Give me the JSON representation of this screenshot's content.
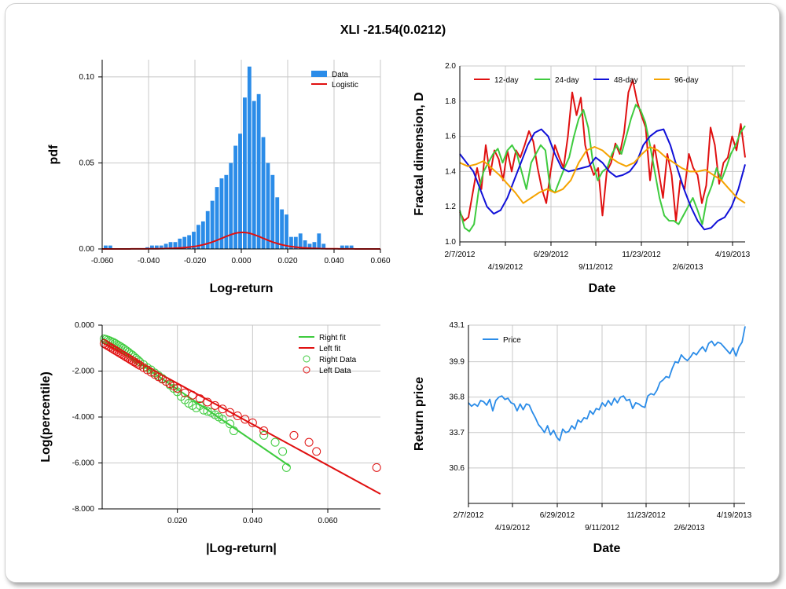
{
  "title": "XLI -21.54(0.0212)",
  "colors": {
    "blue": "#2b8ce8",
    "red": "#e01010",
    "green": "#3ecb3e",
    "darkblue": "#1010d8",
    "orange": "#f5a300",
    "grid": "#c8c8c8"
  },
  "chart_data": [
    {
      "type": "bar",
      "id": "histogram",
      "xlabel": "Log-return",
      "ylabel": "pdf",
      "xlim": [
        -0.06,
        0.06
      ],
      "ylim": [
        0,
        0.11
      ],
      "xticks": [
        "-0.060",
        "-0.040",
        "-0.020",
        "0.000",
        "0.020",
        "0.040",
        "0.060"
      ],
      "yticks": [
        "0.00",
        "0.05",
        "0.10"
      ],
      "legend": [
        "Data",
        "Logistic"
      ],
      "legend_position": "top-right",
      "bins": [
        -0.0585,
        -0.0565,
        -0.0545,
        -0.0525,
        -0.0505,
        -0.0485,
        -0.0465,
        -0.0445,
        -0.0425,
        -0.0405,
        -0.0385,
        -0.0365,
        -0.0345,
        -0.0325,
        -0.0305,
        -0.0285,
        -0.0265,
        -0.0245,
        -0.0225,
        -0.0205,
        -0.0185,
        -0.0165,
        -0.0145,
        -0.0125,
        -0.0105,
        -0.0085,
        -0.0065,
        -0.0045,
        -0.0025,
        -0.0005,
        0.0015,
        0.0035,
        0.0055,
        0.0075,
        0.0095,
        0.0115,
        0.0135,
        0.0155,
        0.0175,
        0.0195,
        0.0215,
        0.0235,
        0.0255,
        0.0275,
        0.0295,
        0.0315,
        0.0335,
        0.0355,
        0.0375,
        0.0395,
        0.0415,
        0.0435,
        0.0455,
        0.0475
      ],
      "values": [
        0.002,
        0.002,
        0,
        0,
        0,
        0,
        0,
        0,
        0,
        0.001,
        0.002,
        0.002,
        0.002,
        0.003,
        0.004,
        0.004,
        0.006,
        0.007,
        0.008,
        0.01,
        0.014,
        0.016,
        0.022,
        0.028,
        0.036,
        0.041,
        0.043,
        0.05,
        0.06,
        0.067,
        0.088,
        0.106,
        0.086,
        0.09,
        0.065,
        0.05,
        0.043,
        0.03,
        0.023,
        0.02,
        0.007,
        0.007,
        0.009,
        0.005,
        0.003,
        0.004,
        0.009,
        0.003,
        0,
        0,
        0,
        0.002,
        0.002,
        0.002
      ],
      "series": [
        {
          "name": "Logistic",
          "mu": 0.0005,
          "s": 0.0065
        }
      ]
    },
    {
      "type": "line",
      "id": "fractal",
      "xlabel": "Date",
      "ylabel": "Fractal dimension, D",
      "ylim": [
        1.0,
        2.0
      ],
      "yticks": [
        "1.0",
        "1.2",
        "1.4",
        "1.6",
        "1.8",
        "2.0"
      ],
      "xticks_top": [
        "2/7/2012",
        "6/29/2012",
        "11/23/2012",
        "4/19/2013"
      ],
      "xticks_bottom": [
        "4/19/2012",
        "9/11/2012",
        "2/6/2013"
      ],
      "legend_position": "top",
      "series": [
        {
          "name": "12-day",
          "values": [
            1.17,
            1.12,
            1.14,
            1.28,
            1.42,
            1.3,
            1.55,
            1.38,
            1.52,
            1.47,
            1.35,
            1.52,
            1.4,
            1.52,
            1.48,
            1.55,
            1.63,
            1.57,
            1.42,
            1.3,
            1.22,
            1.4,
            1.55,
            1.48,
            1.42,
            1.6,
            1.85,
            1.72,
            1.82,
            1.55,
            1.45,
            1.38,
            1.42,
            1.15,
            1.4,
            1.45,
            1.56,
            1.5,
            1.62,
            1.85,
            1.92,
            1.8,
            1.72,
            1.65,
            1.35,
            1.55,
            1.4,
            1.25,
            1.5,
            1.38,
            1.12,
            1.35,
            1.3,
            1.5,
            1.42,
            1.38,
            1.22,
            1.32,
            1.65,
            1.55,
            1.33,
            1.45,
            1.48,
            1.6,
            1.52,
            1.67,
            1.48
          ]
        },
        {
          "name": "24-day",
          "values": [
            1.18,
            1.08,
            1.06,
            1.1,
            1.3,
            1.4,
            1.45,
            1.5,
            1.53,
            1.45,
            1.52,
            1.55,
            1.5,
            1.4,
            1.3,
            1.45,
            1.5,
            1.55,
            1.52,
            1.3,
            1.28,
            1.35,
            1.42,
            1.48,
            1.6,
            1.7,
            1.75,
            1.65,
            1.45,
            1.35,
            1.4,
            1.42,
            1.5,
            1.55,
            1.5,
            1.6,
            1.7,
            1.78,
            1.75,
            1.68,
            1.55,
            1.4,
            1.25,
            1.15,
            1.12,
            1.12,
            1.1,
            1.15,
            1.2,
            1.25,
            1.18,
            1.1,
            1.25,
            1.32,
            1.42,
            1.35,
            1.42,
            1.5,
            1.55,
            1.62,
            1.66
          ]
        },
        {
          "name": "48-day",
          "values": [
            1.5,
            1.45,
            1.4,
            1.3,
            1.2,
            1.16,
            1.18,
            1.25,
            1.35,
            1.45,
            1.55,
            1.62,
            1.64,
            1.6,
            1.5,
            1.42,
            1.4,
            1.41,
            1.42,
            1.43,
            1.48,
            1.45,
            1.4,
            1.37,
            1.38,
            1.4,
            1.45,
            1.55,
            1.6,
            1.63,
            1.64,
            1.55,
            1.42,
            1.3,
            1.2,
            1.12,
            1.07,
            1.08,
            1.12,
            1.14,
            1.2,
            1.3,
            1.44
          ]
        },
        {
          "name": "96-day",
          "values": [
            1.45,
            1.43,
            1.44,
            1.46,
            1.42,
            1.38,
            1.33,
            1.28,
            1.22,
            1.25,
            1.28,
            1.3,
            1.28,
            1.3,
            1.35,
            1.45,
            1.52,
            1.54,
            1.52,
            1.48,
            1.45,
            1.43,
            1.45,
            1.5,
            1.54,
            1.52,
            1.48,
            1.45,
            1.42,
            1.4,
            1.4,
            1.41,
            1.38,
            1.35,
            1.3,
            1.25,
            1.22
          ]
        }
      ]
    },
    {
      "type": "scatter",
      "id": "tail",
      "xlabel": "|Log-return|",
      "ylabel": "Log(percentile)",
      "xlim": [
        0,
        0.074
      ],
      "ylim": [
        -8.0,
        0.0
      ],
      "xticks": [
        "0.020",
        "0.040",
        "0.060"
      ],
      "yticks": [
        "0.000",
        "-2.000",
        "-4.000",
        "-6.000",
        "-8.000"
      ],
      "legend_position": "top-right",
      "series": [
        {
          "name": "Right fit",
          "kind": "line",
          "x": [
            0.0,
            0.05
          ],
          "y": [
            -0.55,
            -6.15
          ]
        },
        {
          "name": "Left fit",
          "kind": "line",
          "x": [
            0.0,
            0.074
          ],
          "y": [
            -0.75,
            -7.35
          ]
        },
        {
          "name": "Right Data",
          "kind": "points",
          "x": [
            0.0005,
            0.001,
            0.0015,
            0.002,
            0.0025,
            0.003,
            0.0035,
            0.004,
            0.0045,
            0.005,
            0.0055,
            0.006,
            0.0065,
            0.007,
            0.0075,
            0.008,
            0.0085,
            0.009,
            0.0095,
            0.01,
            0.011,
            0.012,
            0.013,
            0.014,
            0.015,
            0.016,
            0.017,
            0.018,
            0.019,
            0.02,
            0.021,
            0.022,
            0.023,
            0.024,
            0.025,
            0.026,
            0.027,
            0.028,
            0.029,
            0.03,
            0.031,
            0.032,
            0.034,
            0.035,
            0.043,
            0.046,
            0.048,
            0.049
          ],
          "y": [
            -0.6,
            -0.62,
            -0.65,
            -0.68,
            -0.72,
            -0.75,
            -0.8,
            -0.85,
            -0.9,
            -0.95,
            -1.0,
            -1.06,
            -1.12,
            -1.18,
            -1.25,
            -1.3,
            -1.38,
            -1.45,
            -1.52,
            -1.6,
            -1.72,
            -1.85,
            -1.95,
            -2.08,
            -2.2,
            -2.32,
            -2.45,
            -2.6,
            -2.75,
            -2.9,
            -3.1,
            -3.25,
            -3.4,
            -3.5,
            -3.6,
            -3.5,
            -3.7,
            -3.75,
            -3.8,
            -3.9,
            -4.0,
            -4.1,
            -4.3,
            -4.6,
            -4.8,
            -5.1,
            -5.5,
            -6.2
          ]
        },
        {
          "name": "Left Data",
          "kind": "points",
          "x": [
            0.0005,
            0.001,
            0.0015,
            0.002,
            0.0025,
            0.003,
            0.0035,
            0.004,
            0.0045,
            0.005,
            0.0055,
            0.006,
            0.0065,
            0.007,
            0.0075,
            0.008,
            0.0085,
            0.009,
            0.0095,
            0.01,
            0.011,
            0.012,
            0.013,
            0.014,
            0.015,
            0.016,
            0.017,
            0.018,
            0.019,
            0.02,
            0.022,
            0.024,
            0.026,
            0.028,
            0.03,
            0.032,
            0.034,
            0.036,
            0.038,
            0.04,
            0.043,
            0.051,
            0.055,
            0.057,
            0.073
          ],
          "y": [
            -0.8,
            -0.85,
            -0.9,
            -0.95,
            -1.0,
            -1.05,
            -1.1,
            -1.15,
            -1.2,
            -1.25,
            -1.3,
            -1.35,
            -1.4,
            -1.45,
            -1.5,
            -1.55,
            -1.6,
            -1.65,
            -1.7,
            -1.75,
            -1.85,
            -1.95,
            -2.05,
            -2.15,
            -2.25,
            -2.35,
            -2.45,
            -2.55,
            -2.65,
            -2.75,
            -2.95,
            -3.05,
            -3.2,
            -3.35,
            -3.5,
            -3.65,
            -3.8,
            -3.95,
            -4.1,
            -4.25,
            -4.6,
            -4.8,
            -5.1,
            -5.5,
            -6.2
          ]
        }
      ]
    },
    {
      "type": "line",
      "id": "price",
      "xlabel": "Date",
      "ylabel": "Return price",
      "ylim": [
        27.5,
        43.1
      ],
      "yticks": [
        "43.1",
        "39.9",
        "36.8",
        "33.7",
        "30.6"
      ],
      "xticks_top": [
        "2/7/2012",
        "6/29/2012",
        "11/23/2012",
        "4/19/2013"
      ],
      "xticks_bottom": [
        "4/19/2012",
        "9/11/2012",
        "2/6/2013"
      ],
      "legend_position": "top-left",
      "series": [
        {
          "name": "Price",
          "values": [
            36.3,
            36.0,
            36.2,
            36.0,
            36.5,
            36.4,
            36.1,
            36.6,
            35.6,
            36.5,
            36.8,
            36.9,
            36.6,
            36.7,
            36.3,
            36.2,
            35.6,
            36.2,
            35.7,
            36.2,
            36.1,
            35.5,
            35.0,
            34.4,
            34.1,
            33.7,
            34.3,
            33.5,
            33.9,
            33.3,
            33.0,
            34.0,
            33.7,
            33.8,
            34.3,
            34.0,
            34.8,
            34.6,
            35.0,
            34.9,
            35.6,
            35.3,
            35.8,
            35.7,
            36.3,
            36.0,
            36.5,
            36.1,
            36.7,
            36.3,
            36.8,
            36.9,
            36.5,
            36.6,
            35.8,
            36.3,
            36.2,
            36.0,
            35.9,
            36.9,
            37.1,
            37.0,
            37.4,
            38.1,
            38.3,
            38.6,
            38.5,
            39.3,
            39.9,
            39.8,
            40.5,
            40.2,
            40.0,
            40.3,
            40.7,
            40.5,
            40.9,
            41.2,
            40.8,
            41.5,
            41.7,
            41.3,
            41.6,
            41.5,
            41.2,
            40.9,
            40.6,
            41.1,
            40.4,
            41.2,
            41.6,
            43.0
          ]
        }
      ]
    }
  ]
}
